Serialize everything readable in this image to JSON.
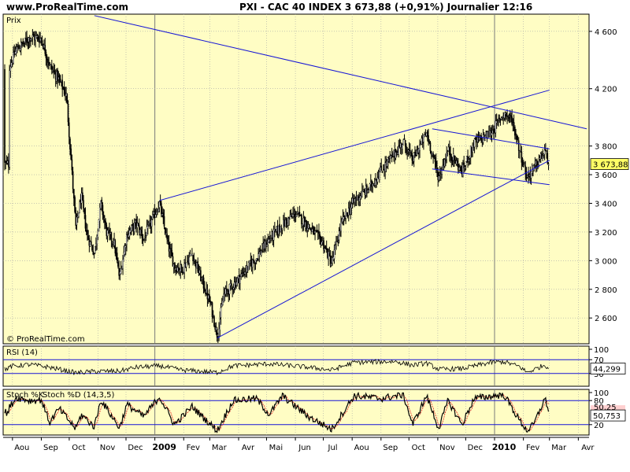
{
  "header": {
    "site": "www.ProRealTime.com",
    "title": "PXI - CAC 40 INDEX   3 673,88 (+0,91%)   Journalier  12:16"
  },
  "colors": {
    "bg": "#fffdc4",
    "grid": "#a6a6a6",
    "trend": "#1515d6",
    "candle": "#000000",
    "stoch_d": "#e02020",
    "tag_bg": "#ffff66"
  },
  "chart_data": [
    {
      "type": "candlestick",
      "title": "Prix",
      "ylim": [
        2420,
        4720
      ],
      "yticks": [
        "2 600",
        "2 800",
        "3 000",
        "3 200",
        "3 400",
        "3 600",
        "3 800",
        "4 200",
        "4 600"
      ],
      "ytick_values": [
        2600,
        2800,
        3000,
        3200,
        3400,
        3600,
        3800,
        4200,
        4600
      ],
      "last_value_label": "3 673,88",
      "last_value": 3673.88,
      "watermark": "© ProRealTime.com",
      "x_labels": [
        "Aou",
        "Sep",
        "Oct",
        "Nov",
        "Dec",
        "2009",
        "Fev",
        "Mar",
        "Avr",
        "Mai",
        "Jun",
        "Jul",
        "Aou",
        "Sep",
        "Oct",
        "Nov",
        "Dec",
        "2010",
        "Fev",
        "Mar",
        "Avr"
      ],
      "bold_x_labels": [
        "2009",
        "2010"
      ],
      "trend_lines": [
        {
          "name": "resistance-down",
          "from": [
            "2008-10-28",
            4710
          ],
          "to": [
            "2010-04-10",
            3920
          ]
        },
        {
          "name": "wedge-upper",
          "from": [
            "2009-01-06",
            3420
          ],
          "to": [
            "2010-03-01",
            4190
          ]
        },
        {
          "name": "wedge-lower",
          "from": [
            "2009-03-09",
            2460
          ],
          "to": [
            "2010-03-01",
            3700
          ]
        },
        {
          "name": "channel-top",
          "from": [
            "2009-10-26",
            3920
          ],
          "to": [
            "2010-03-01",
            3780
          ]
        },
        {
          "name": "channel-bottom",
          "from": [
            "2009-10-26",
            3640
          ],
          "to": [
            "2010-03-01",
            3530
          ]
        }
      ],
      "price_anchors": [
        [
          "2008-07-28",
          4340
        ],
        [
          "2008-08-05",
          4470
        ],
        [
          "2008-08-20",
          4560
        ],
        [
          "2008-09-01",
          4550
        ],
        [
          "2008-09-10",
          4360
        ],
        [
          "2008-09-20",
          4260
        ],
        [
          "2008-09-28",
          4150
        ],
        [
          "2008-10-03",
          3700
        ],
        [
          "2008-10-08",
          3230
        ],
        [
          "2008-10-14",
          3450
        ],
        [
          "2008-10-20",
          3180
        ],
        [
          "2008-10-28",
          3050
        ],
        [
          "2008-11-04",
          3400
        ],
        [
          "2008-11-10",
          3200
        ],
        [
          "2008-11-18",
          3130
        ],
        [
          "2008-11-24",
          2880
        ],
        [
          "2008-12-02",
          3180
        ],
        [
          "2008-12-12",
          3260
        ],
        [
          "2008-12-20",
          3150
        ],
        [
          "2009-01-06",
          3400
        ],
        [
          "2009-01-15",
          3110
        ],
        [
          "2009-01-22",
          2960
        ],
        [
          "2009-01-30",
          2940
        ],
        [
          "2009-02-10",
          3050
        ],
        [
          "2009-02-20",
          2870
        ],
        [
          "2009-03-02",
          2690
        ],
        [
          "2009-03-09",
          2480
        ],
        [
          "2009-03-16",
          2760
        ],
        [
          "2009-03-26",
          2830
        ],
        [
          "2009-04-08",
          2930
        ],
        [
          "2009-04-20",
          3020
        ],
        [
          "2009-05-04",
          3150
        ],
        [
          "2009-05-18",
          3250
        ],
        [
          "2009-06-01",
          3330
        ],
        [
          "2009-06-15",
          3240
        ],
        [
          "2009-06-30",
          3130
        ],
        [
          "2009-07-10",
          2980
        ],
        [
          "2009-07-20",
          3250
        ],
        [
          "2009-08-03",
          3420
        ],
        [
          "2009-08-20",
          3510
        ],
        [
          "2009-09-01",
          3630
        ],
        [
          "2009-09-16",
          3750
        ],
        [
          "2009-09-25",
          3830
        ],
        [
          "2009-10-05",
          3700
        ],
        [
          "2009-10-20",
          3890
        ],
        [
          "2009-11-02",
          3580
        ],
        [
          "2009-11-12",
          3770
        ],
        [
          "2009-11-27",
          3620
        ],
        [
          "2009-12-10",
          3820
        ],
        [
          "2009-12-28",
          3890
        ],
        [
          "2010-01-11",
          4030
        ],
        [
          "2010-01-20",
          3980
        ],
        [
          "2010-01-28",
          3770
        ],
        [
          "2010-02-05",
          3580
        ],
        [
          "2010-02-12",
          3640
        ],
        [
          "2010-02-18",
          3700
        ],
        [
          "2010-02-24",
          3760
        ],
        [
          "2010-03-01",
          3674
        ]
      ]
    },
    {
      "type": "line",
      "title": "RSI (14)",
      "ylim": [
        0,
        100
      ],
      "yticks": [
        "100",
        "70",
        "30"
      ],
      "ytick_values": [
        100,
        70,
        30
      ],
      "last_value_label": "44,299",
      "last_value": 44.299,
      "guide_lines": [
        70,
        30
      ],
      "rsi_anchors": [
        [
          "2008-07-28",
          50
        ],
        [
          "2008-08-20",
          56
        ],
        [
          "2008-09-10",
          48
        ],
        [
          "2008-10-08",
          32
        ],
        [
          "2008-10-28",
          36
        ],
        [
          "2008-11-24",
          37
        ],
        [
          "2008-12-12",
          48
        ],
        [
          "2009-01-06",
          52
        ],
        [
          "2009-01-30",
          40
        ],
        [
          "2009-03-09",
          33
        ],
        [
          "2009-03-26",
          52
        ],
        [
          "2009-05-04",
          58
        ],
        [
          "2009-06-15",
          48
        ],
        [
          "2009-07-10",
          40
        ],
        [
          "2009-08-03",
          62
        ],
        [
          "2009-09-16",
          65
        ],
        [
          "2009-10-05",
          54
        ],
        [
          "2009-10-20",
          60
        ],
        [
          "2009-11-02",
          42
        ],
        [
          "2009-11-27",
          44
        ],
        [
          "2009-12-28",
          62
        ],
        [
          "2010-01-11",
          64
        ],
        [
          "2010-01-28",
          50
        ],
        [
          "2010-02-05",
          33
        ],
        [
          "2010-02-24",
          55
        ],
        [
          "2010-03-01",
          44.3
        ]
      ]
    },
    {
      "type": "line",
      "title": "Stoch %K",
      "series_label": "Stoch %D (14,3,5)",
      "ylim": [
        0,
        100
      ],
      "yticks": [
        "100",
        "80",
        "20"
      ],
      "ytick_values": [
        100,
        80,
        20
      ],
      "last_value_label": "50,753",
      "last_value": 50.753,
      "secondary_tag_label": "50,25",
      "guide_lines": [
        80,
        20
      ],
      "stoch_anchors": [
        [
          "2008-07-28",
          60
        ],
        [
          "2008-08-05",
          88
        ],
        [
          "2008-08-20",
          80
        ],
        [
          "2008-09-01",
          82
        ],
        [
          "2008-09-10",
          25
        ],
        [
          "2008-09-20",
          60
        ],
        [
          "2008-10-08",
          10
        ],
        [
          "2008-10-14",
          45
        ],
        [
          "2008-10-28",
          15
        ],
        [
          "2008-11-04",
          82
        ],
        [
          "2008-11-24",
          12
        ],
        [
          "2008-12-02",
          70
        ],
        [
          "2008-12-20",
          40
        ],
        [
          "2009-01-06",
          90
        ],
        [
          "2009-01-22",
          20
        ],
        [
          "2009-02-10",
          65
        ],
        [
          "2009-03-09",
          5
        ],
        [
          "2009-03-26",
          80
        ],
        [
          "2009-04-20",
          85
        ],
        [
          "2009-05-04",
          45
        ],
        [
          "2009-05-18",
          92
        ],
        [
          "2009-06-15",
          40
        ],
        [
          "2009-07-10",
          8
        ],
        [
          "2009-08-03",
          92
        ],
        [
          "2009-09-01",
          85
        ],
        [
          "2009-09-25",
          95
        ],
        [
          "2009-10-05",
          20
        ],
        [
          "2009-10-20",
          92
        ],
        [
          "2009-11-02",
          10
        ],
        [
          "2009-11-12",
          80
        ],
        [
          "2009-11-27",
          20
        ],
        [
          "2009-12-10",
          85
        ],
        [
          "2010-01-11",
          95
        ],
        [
          "2010-01-28",
          30
        ],
        [
          "2010-02-05",
          5
        ],
        [
          "2010-02-12",
          20
        ],
        [
          "2010-02-24",
          85
        ],
        [
          "2010-03-01",
          50.8
        ]
      ]
    }
  ]
}
